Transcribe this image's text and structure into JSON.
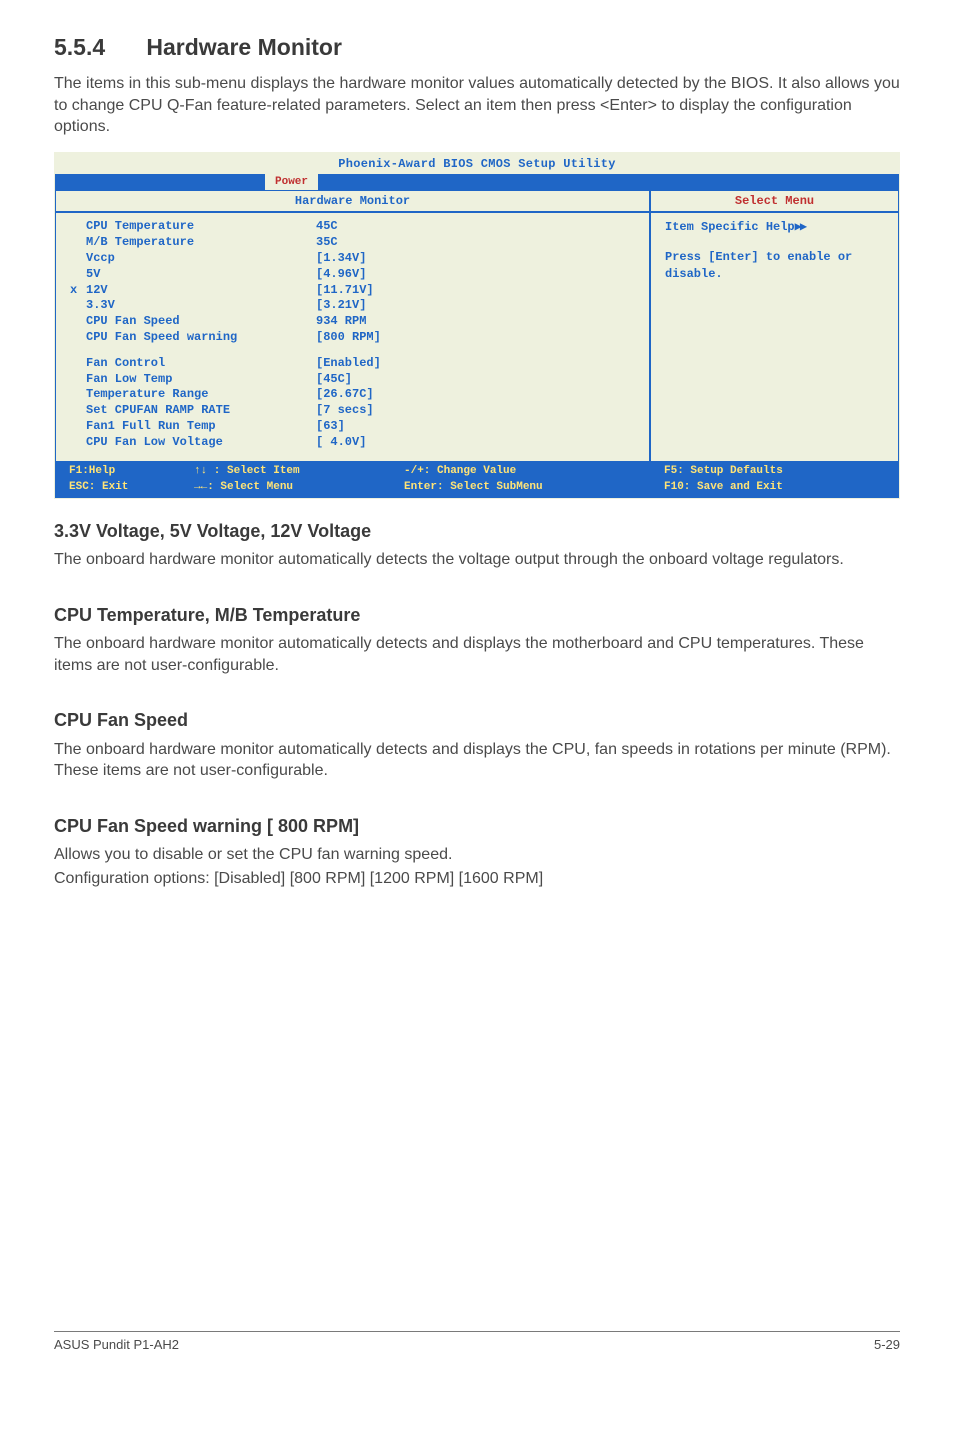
{
  "section": {
    "number": "5.5.4",
    "title": "Hardware Monitor"
  },
  "intro": "The items in this sub-menu displays the hardware monitor values automatically detected by the BIOS. It also allows you to change CPU Q-Fan feature-related parameters. Select an item then press <Enter> to display the configuration options.",
  "bios": {
    "title": "Phoenix-Award BIOS CMOS Setup Utility",
    "tab": "Power",
    "panel_title": "Hardware Monitor",
    "menu_title": "Select Menu",
    "help_title": "Item Specific Help",
    "help_body": "Press [Enter] to enable or disable.",
    "items": [
      {
        "marker": "",
        "label": "CPU Temperature",
        "value": "45C"
      },
      {
        "marker": "",
        "label": "M/B Temperature",
        "value": "35C"
      },
      {
        "marker": "",
        "label": "Vccp",
        "value": "[1.34V]"
      },
      {
        "marker": "",
        "label": "5V",
        "value": "[4.96V]"
      },
      {
        "marker": "x",
        "label": "12V",
        "value": "[11.71V]"
      },
      {
        "marker": "",
        "label": "3.3V",
        "value": "[3.21V]"
      },
      {
        "marker": "",
        "label": "CPU Fan Speed",
        "value": "934 RPM"
      },
      {
        "marker": "",
        "label": "CPU Fan Speed warning",
        "value": "[800 RPM]"
      }
    ],
    "items2": [
      {
        "marker": "",
        "label": "Fan Control",
        "value": "[Enabled]"
      },
      {
        "marker": "",
        "label": "Fan Low Temp",
        "value": "[45C]"
      },
      {
        "marker": "",
        "label": "Temperature Range",
        "value": "[26.67C]"
      },
      {
        "marker": "",
        "label": "Set CPUFAN RAMP RATE",
        "value": "[7 secs]",
        "alt": true
      },
      {
        "marker": "",
        "label": "Fan1 Full Run Temp",
        "value": "[63]"
      },
      {
        "marker": "",
        "label": "CPU Fan Low Voltage",
        "value": "[ 4.0V]"
      }
    ],
    "footer": {
      "f1": "F1:Help",
      "sel_item": "↑↓ : Select Item",
      "chg_val": "-/+: Change Value",
      "f5": "F5: Setup Defaults",
      "esc": "ESC: Exit",
      "sel_menu": "→←: Select Menu",
      "enter": "Enter: Select SubMenu",
      "f10": "F10: Save and Exit"
    }
  },
  "sections": [
    {
      "h": "3.3V Voltage, 5V Voltage, 12V Voltage",
      "p": "The onboard hardware monitor automatically detects the voltage output through the onboard voltage regulators."
    },
    {
      "h": "CPU Temperature, M/B Temperature",
      "p": "The onboard hardware monitor automatically detects and displays the motherboard and CPU temperatures. These items are not user-configurable."
    },
    {
      "h": "CPU Fan Speed",
      "p": "The onboard hardware monitor automatically detects and displays the CPU, fan speeds in rotations per minute (RPM). These items are not user-configurable."
    },
    {
      "h": "CPU Fan Speed warning [ 800 RPM]",
      "p": "Allows you to disable or set the CPU fan warning speed.\nConfiguration options: [Disabled] [800 RPM] [1200 RPM] [1600 RPM]"
    }
  ],
  "footer": {
    "left": "ASUS Pundit P1-AH2",
    "right": "5-29"
  }
}
